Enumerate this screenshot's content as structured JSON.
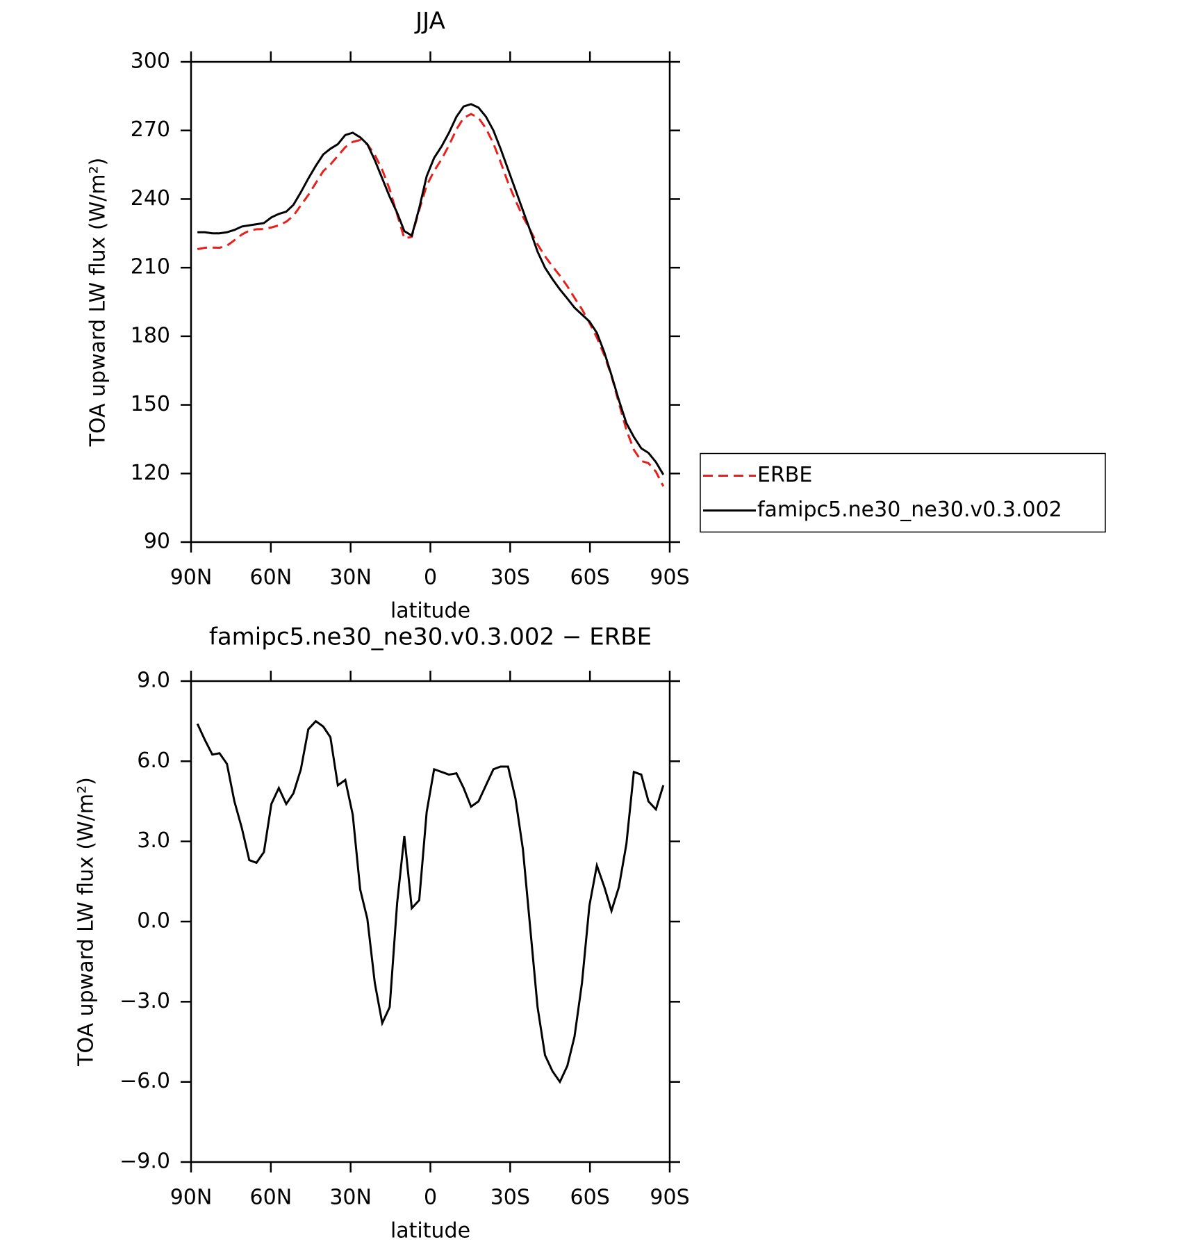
{
  "chart_data": [
    {
      "type": "line",
      "title": "JJA",
      "xlabel": "latitude",
      "ylabel": "TOA upward LW flux (W/m²)",
      "x": [
        87.6,
        84.8,
        82.0,
        79.3,
        76.5,
        73.7,
        70.9,
        68.1,
        65.4,
        62.6,
        59.8,
        57.0,
        54.2,
        51.5,
        48.7,
        45.9,
        43.1,
        40.3,
        37.6,
        34.8,
        32.0,
        29.2,
        26.4,
        23.7,
        20.9,
        18.1,
        15.3,
        12.5,
        9.8,
        7.0,
        4.2,
        1.4,
        -1.4,
        -4.2,
        -7.0,
        -9.8,
        -12.5,
        -15.3,
        -18.1,
        -20.9,
        -23.7,
        -26.4,
        -29.2,
        -32.0,
        -34.8,
        -37.6,
        -40.3,
        -43.1,
        -45.9,
        -48.7,
        -51.5,
        -54.2,
        -57.0,
        -59.8,
        -62.6,
        -65.4,
        -68.1,
        -70.9,
        -73.7,
        -76.5,
        -79.3,
        -82.0,
        -84.8,
        -87.6
      ],
      "series": [
        {
          "name": "ERBE",
          "color": "#e8201c",
          "line_style": "dashed",
          "values": [
            218.1,
            218.7,
            218.8,
            218.7,
            219.6,
            222,
            224.5,
            226.2,
            226.8,
            226.9,
            227.6,
            228.5,
            230.1,
            232.7,
            237.3,
            241.8,
            247,
            252.2,
            255.1,
            258.9,
            262.7,
            265,
            265.8,
            263.9,
            259.3,
            252.8,
            244.2,
            233.3,
            222.8,
            223.5,
            235.2,
            245.9,
            252.3,
            257.4,
            263.5,
            270.5,
            275.5,
            277.2,
            275.5,
            270.9,
            264.3,
            256.2,
            247.2,
            239.4,
            232.3,
            226.3,
            220.2,
            215,
            210.6,
            206.5,
            201.9,
            196.8,
            191.8,
            185.9,
            179.4,
            171.7,
            162.6,
            150.7,
            139.1,
            130.4,
            125.5,
            124.5,
            120.8,
            114.4
          ]
        },
        {
          "name": "famipc5.ne30_ne30.v0.3.002",
          "color": "#000000",
          "line_style": "solid",
          "values": [
            225.5,
            225.5,
            225,
            225,
            225.5,
            226.5,
            228,
            228.5,
            229,
            229.5,
            232,
            233.5,
            234.5,
            237.5,
            243,
            249,
            254.5,
            259.5,
            262,
            264,
            268,
            269,
            267,
            264,
            257,
            249,
            241,
            234,
            226,
            224,
            236,
            250,
            258,
            263,
            269,
            276,
            280.5,
            281.5,
            280,
            276,
            270,
            262,
            253,
            244,
            235,
            226,
            217,
            210,
            205,
            200.5,
            196.5,
            192.5,
            189.5,
            186.5,
            181.5,
            173,
            163,
            152,
            142,
            136,
            131,
            129,
            125,
            119.5
          ]
        }
      ],
      "xlim": [
        90,
        -90
      ],
      "xticks": [
        {
          "value": 90,
          "label": "90N"
        },
        {
          "value": 60,
          "label": "60N"
        },
        {
          "value": 30,
          "label": "30N"
        },
        0,
        {
          "value": -30,
          "label": "30S"
        },
        {
          "value": -60,
          "label": "60S"
        },
        {
          "value": -90,
          "label": "90S"
        }
      ],
      "ylim": [
        90,
        300
      ],
      "yticks": [
        90,
        120,
        150,
        180,
        210,
        240,
        270,
        300
      ],
      "legend": "right"
    },
    {
      "type": "line",
      "title": "famipc5.ne30_ne30.v0.3.002 − ERBE",
      "xlabel": "latitude",
      "ylabel": "TOA upward LW flux (W/m²)",
      "x": [
        87.6,
        84.8,
        82.0,
        79.3,
        76.5,
        73.7,
        70.9,
        68.1,
        65.4,
        62.6,
        59.8,
        57.0,
        54.2,
        51.5,
        48.7,
        45.9,
        43.1,
        40.3,
        37.6,
        34.8,
        32.0,
        29.2,
        26.4,
        23.7,
        20.9,
        18.1,
        15.3,
        12.5,
        9.8,
        7.0,
        4.2,
        1.4,
        -1.4,
        -4.2,
        -7.0,
        -9.8,
        -12.5,
        -15.3,
        -18.1,
        -20.9,
        -23.7,
        -26.4,
        -29.2,
        -32.0,
        -34.8,
        -37.6,
        -40.3,
        -43.1,
        -45.9,
        -48.7,
        -51.5,
        -54.2,
        -57.0,
        -59.8,
        -62.6,
        -65.4,
        -68.1,
        -70.9,
        -73.7,
        -76.5,
        -79.3,
        -82.0,
        -84.8,
        -87.6
      ],
      "values": [
        7.4,
        6.8,
        6.25,
        6.3,
        5.9,
        4.5,
        3.5,
        2.3,
        2.2,
        2.6,
        4.4,
        5.0,
        4.4,
        4.8,
        5.7,
        7.2,
        7.5,
        7.3,
        6.9,
        5.1,
        5.3,
        4.0,
        1.2,
        0.1,
        -2.3,
        -3.8,
        -3.2,
        0.7,
        3.2,
        0.5,
        0.8,
        4.1,
        5.7,
        5.6,
        5.5,
        5.55,
        5.0,
        4.3,
        4.5,
        5.1,
        5.7,
        5.8,
        5.8,
        4.6,
        2.7,
        -0.3,
        -3.2,
        -5.0,
        -5.6,
        -6.0,
        -5.4,
        -4.3,
        -2.3,
        0.6,
        2.1,
        1.3,
        0.4,
        1.3,
        2.9,
        5.6,
        5.5,
        4.5,
        4.2,
        5.1
      ],
      "color": "#000000",
      "xlim": [
        90,
        -90
      ],
      "xticks": [
        {
          "value": 90,
          "label": "90N"
        },
        {
          "value": 60,
          "label": "60N"
        },
        {
          "value": 30,
          "label": "30N"
        },
        0,
        {
          "value": -30,
          "label": "30S"
        },
        {
          "value": -60,
          "label": "60S"
        },
        {
          "value": -90,
          "label": "90S"
        }
      ],
      "ylim": [
        -9,
        9
      ],
      "yticks": [
        {
          "value": -9,
          "label": "−9.0"
        },
        {
          "value": -6,
          "label": "−6.0"
        },
        {
          "value": -3,
          "label": "−3.0"
        },
        {
          "value": 0,
          "label": "0.0"
        },
        {
          "value": 3,
          "label": "3.0"
        },
        {
          "value": 6,
          "label": "6.0"
        },
        {
          "value": 9,
          "label": "9.0"
        }
      ]
    }
  ]
}
